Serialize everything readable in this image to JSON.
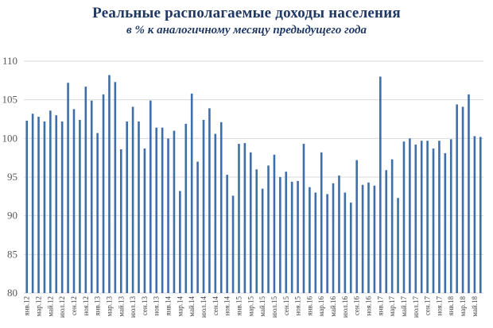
{
  "colors": {
    "bar": "#3f6fa9",
    "grid": "#d9d9d9",
    "title": "#1f3864"
  },
  "chart_data": {
    "type": "bar",
    "title": "Реальные располагаемые доходы населения",
    "subtitle": "в % к аналогичному месяцу предыдущего года",
    "xlabel": "",
    "ylabel": "",
    "ylim": [
      80,
      110
    ],
    "yticks": [
      80,
      85,
      90,
      95,
      100,
      105,
      110
    ],
    "grid": true,
    "legend": "none",
    "x_tick_labels": [
      "янв.12",
      "мар.12",
      "май.12",
      "июл.12",
      "сен.12",
      "ноя.12",
      "янв.13",
      "мар.13",
      "май.13",
      "июл.13",
      "сен.13",
      "ноя.13",
      "янв.14",
      "мар.14",
      "май.14",
      "июл.14",
      "сен.14",
      "ноя.14",
      "янв.15",
      "мар.15",
      "май.15",
      "июл.15",
      "сен.15",
      "ноя.15",
      "янв.16",
      "мар.16",
      "май.16",
      "июл.16",
      "сен.16",
      "ноя.16",
      "янв.17",
      "мар.17",
      "май.17",
      "июл.17",
      "сен.17",
      "ноя.17",
      "янв.18",
      "мар.18",
      "май.18"
    ],
    "values": [
      102.3,
      103.2,
      102.8,
      102.2,
      103.6,
      103.0,
      102.2,
      107.2,
      103.8,
      102.4,
      106.7,
      104.9,
      100.7,
      105.7,
      108.2,
      107.3,
      98.6,
      102.2,
      104.1,
      102.2,
      98.7,
      104.9,
      101.4,
      101.4,
      100.0,
      101.0,
      93.2,
      101.9,
      105.8,
      97.0,
      102.4,
      103.9,
      100.6,
      102.1,
      95.3,
      92.6,
      99.3,
      99.4,
      98.2,
      96.0,
      93.5,
      96.5,
      97.9,
      95.0,
      95.7,
      94.4,
      94.5,
      99.3,
      93.7,
      93.0,
      98.2,
      92.8,
      94.2,
      95.2,
      93.0,
      91.7,
      97.2,
      94.0,
      94.3,
      93.9,
      108.0,
      95.9,
      97.3,
      92.3,
      99.6,
      100.0,
      99.2,
      99.7,
      99.7,
      98.7,
      99.7,
      98.1,
      99.9,
      104.4,
      104.1,
      105.7,
      100.3,
      100.2
    ]
  }
}
